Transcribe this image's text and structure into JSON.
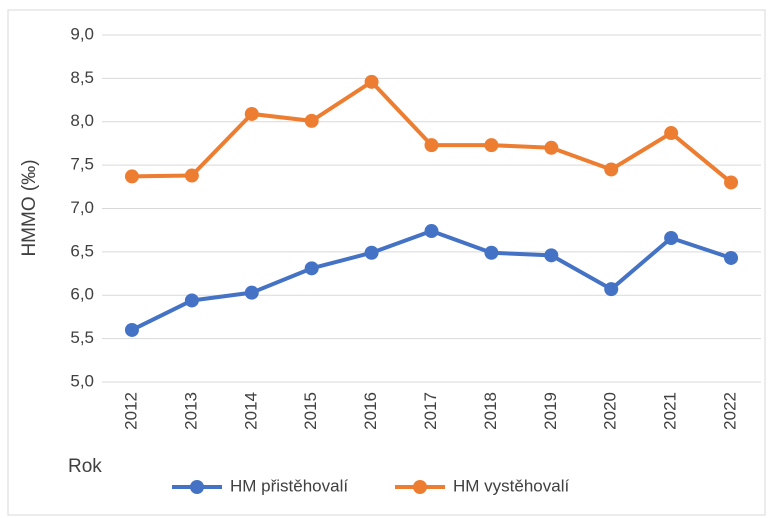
{
  "chart_data": {
    "type": "line",
    "y_label": "HMMO (‰)",
    "x_label": "Rok",
    "categories": [
      "2012",
      "2013",
      "2014",
      "2015",
      "2016",
      "2017",
      "2018",
      "2019",
      "2020",
      "2021",
      "2022"
    ],
    "series": [
      {
        "name": "HM přistěhovalí",
        "color": "#4472c4",
        "values": [
          5.6,
          5.94,
          6.03,
          6.31,
          6.49,
          6.74,
          6.49,
          6.46,
          6.07,
          6.66,
          6.43
        ]
      },
      {
        "name": "HM vystěhovalí",
        "color": "#ed7d31",
        "values": [
          7.37,
          7.38,
          8.09,
          8.01,
          8.46,
          7.73,
          7.73,
          7.7,
          7.45,
          7.87,
          7.3
        ]
      }
    ],
    "ylim": [
      5,
      9
    ],
    "yticks": [
      {
        "value": 5,
        "label": "5,0"
      },
      {
        "value": 5.5,
        "label": "5,5"
      },
      {
        "value": 6,
        "label": "6,0"
      },
      {
        "value": 6.5,
        "label": "6,5"
      },
      {
        "value": 7,
        "label": "7,0"
      },
      {
        "value": 7.5,
        "label": "7,5"
      },
      {
        "value": 8,
        "label": "8,0"
      },
      {
        "value": 8.5,
        "label": "8,5"
      },
      {
        "value": 9,
        "label": "9,0"
      }
    ],
    "grid": true,
    "legend": "bottom"
  }
}
